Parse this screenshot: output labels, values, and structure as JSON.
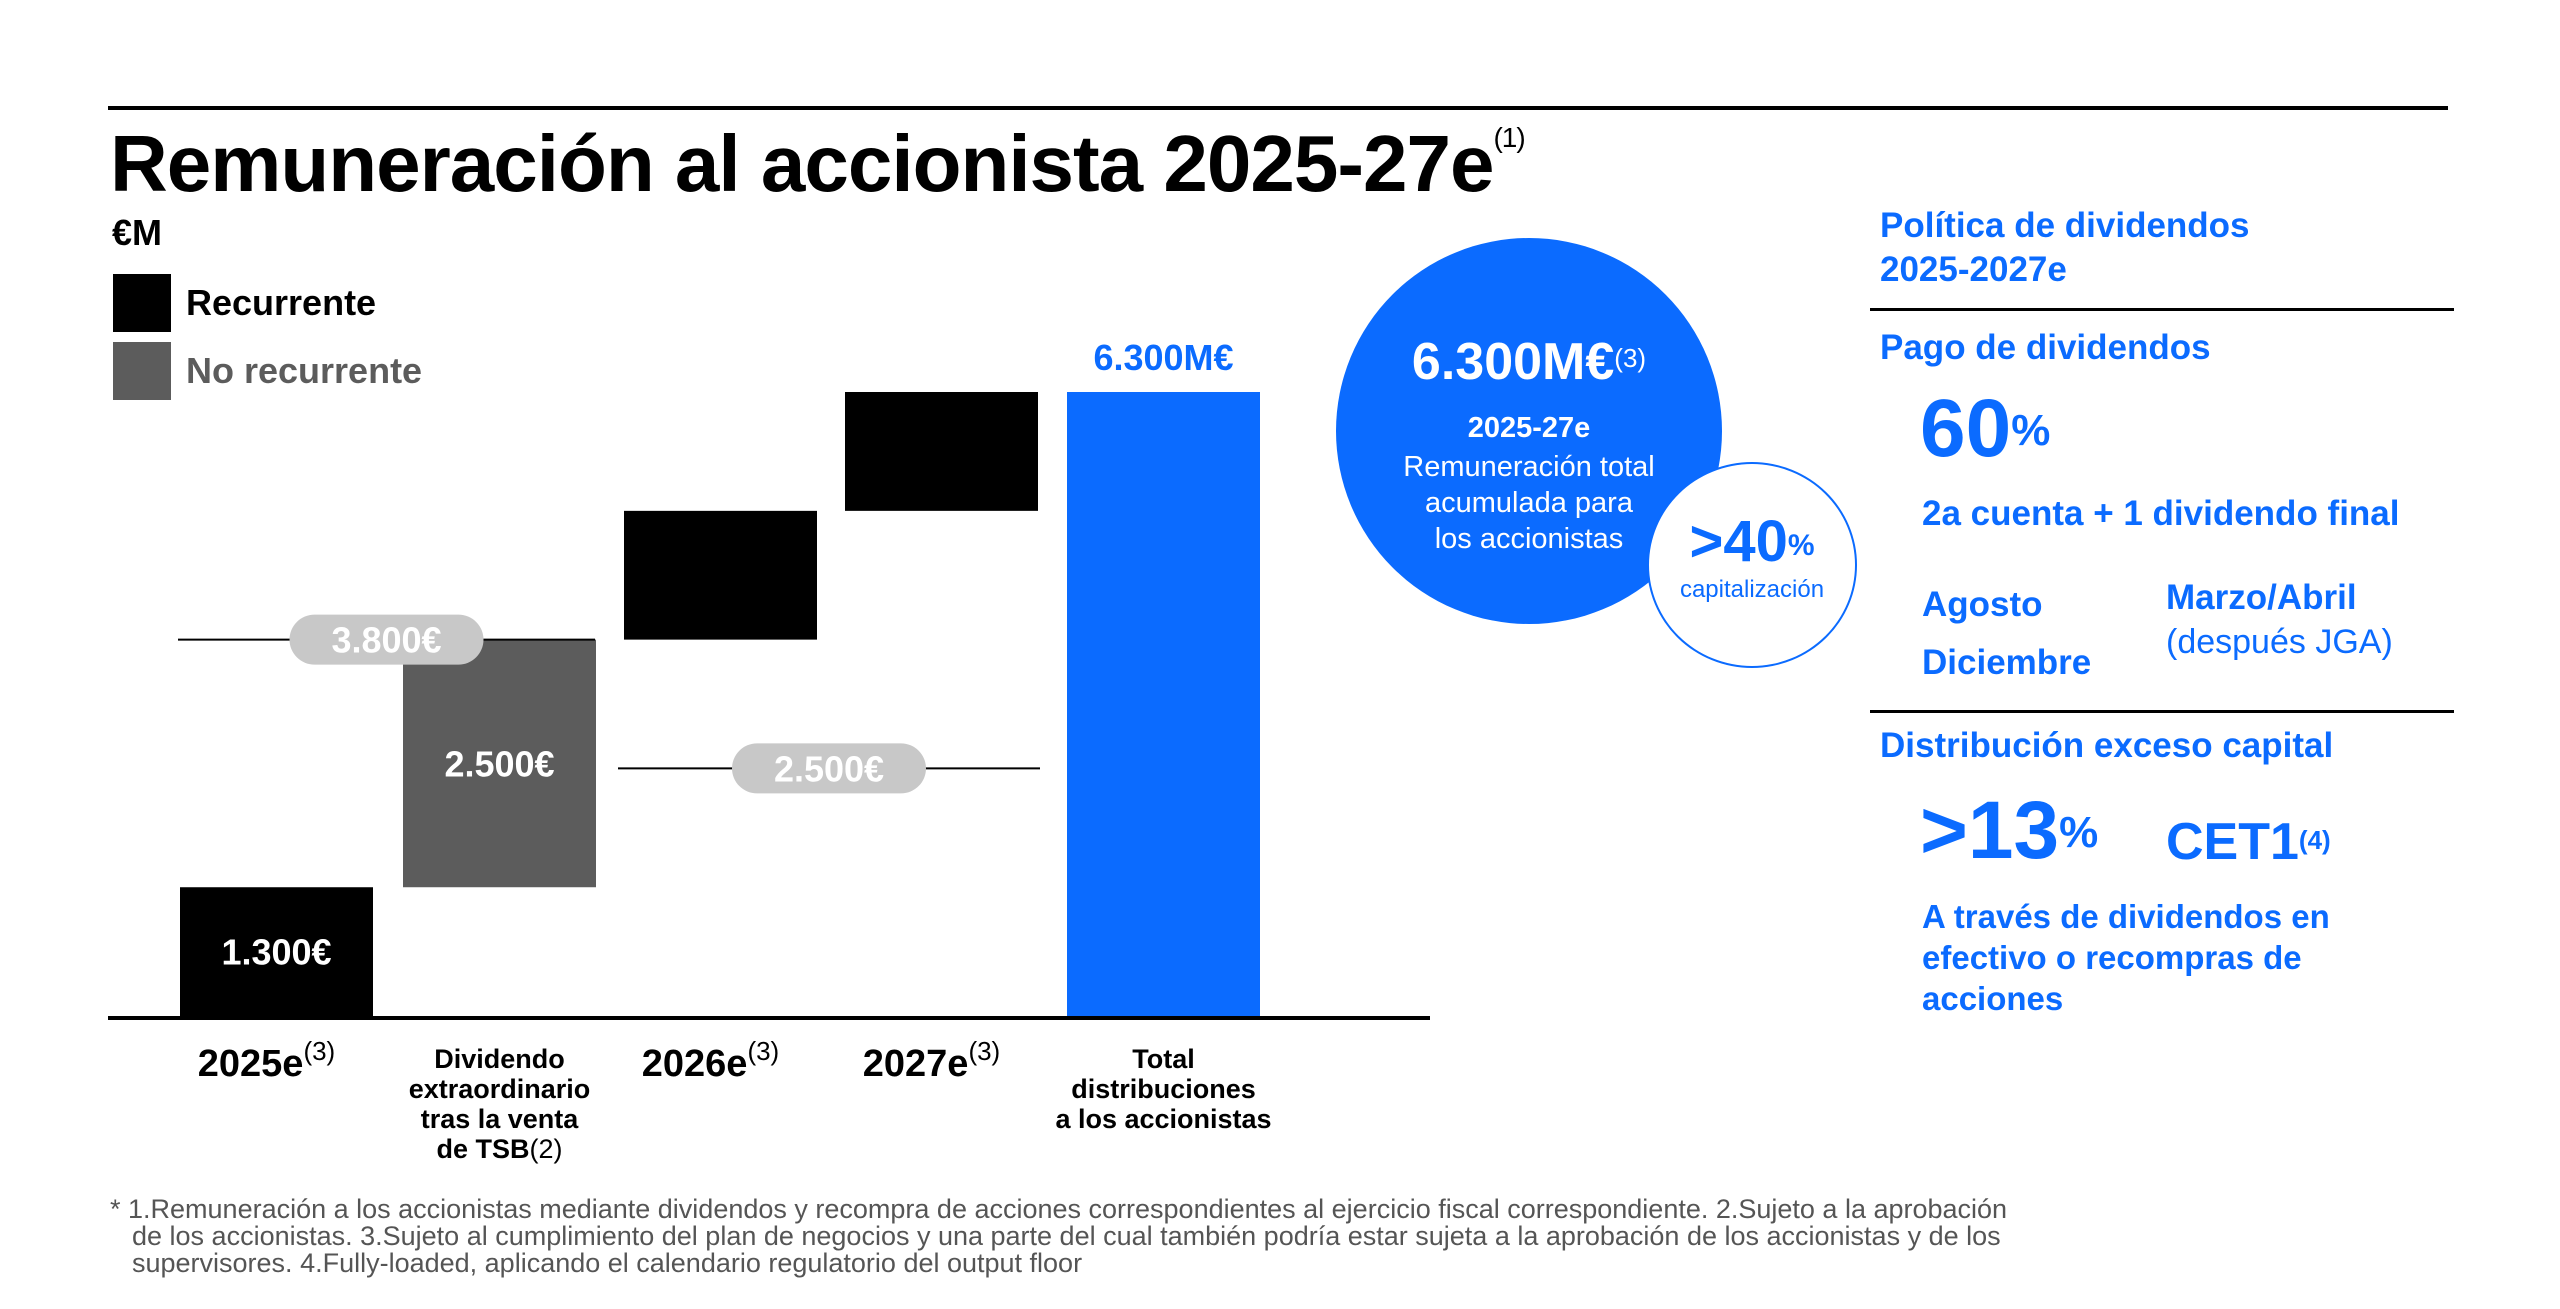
{
  "title": "Remuneración al accionista 2025-27e",
  "title_sup": "(1)",
  "unit": "€M",
  "legend": [
    {
      "label": "Recurrente",
      "color": "#000000"
    },
    {
      "label": "No recurrente",
      "color": "#5c5c5c"
    }
  ],
  "chart_data": {
    "type": "bar",
    "subtype": "waterfall",
    "categories": [
      "2025e(3)",
      "Dividendo extraordinario tras la venta de TSB(2)",
      "2026e(3)",
      "2027e(3)",
      "Total distribuciones a los accionistas"
    ],
    "values": [
      1300,
      2500,
      1300,
      1200,
      6300
    ],
    "bar_labels": [
      "1.300€",
      "2.500€",
      "",
      "",
      "6.300M€"
    ],
    "legend_for_bars": [
      "Recurrente",
      "No recurrente",
      "Recurrente",
      "Recurrente",
      null
    ],
    "colors": [
      "#000000",
      "#5c5c5c",
      "#000000",
      "#000000",
      "#0b6bff"
    ],
    "bracket_totals": [
      {
        "label": "3.800€",
        "value": 3800
      },
      {
        "label": "2.500€",
        "value": 2500
      }
    ],
    "ylim": [
      0,
      6300
    ]
  },
  "categories_display": {
    "c1": {
      "text": "2025e",
      "sup": "(3)"
    },
    "c2": {
      "lines": [
        "Dividendo",
        "extraordinario",
        "tras la venta",
        "de TSB"
      ],
      "sup": "(2)"
    },
    "c3": {
      "text": "2026e",
      "sup": "(3)"
    },
    "c4": {
      "text": "2027e",
      "sup": "(3)"
    },
    "c5": {
      "lines": [
        "Total",
        "distribuciones",
        "a los accionistas"
      ]
    }
  },
  "circle": {
    "value": "6.300M€",
    "value_sup": "(3)",
    "period": "2025-27e",
    "desc": [
      "Remuneración total",
      "acumulada para",
      "los accionistas"
    ]
  },
  "circle_small": {
    "value": ">40",
    "pct": "%",
    "label": "capitalización"
  },
  "right_panel": {
    "heading": [
      "Política de dividendos",
      "2025-2027e"
    ],
    "pago_title": "Pago de dividendos",
    "payout_value": "60",
    "payout_pct": "%",
    "payout_desc": "2a cuenta + 1 dividendo final",
    "schedule_left": [
      "Agosto",
      "Diciembre"
    ],
    "schedule_right_title": "Marzo/Abril",
    "schedule_right_note": "(después JGA)",
    "excess_title": "Distribución exceso capital",
    "excess_value": ">13",
    "excess_pct": "%",
    "cet1": "CET1",
    "cet1_sup": "(4)",
    "excess_desc": [
      "A través de dividendos en",
      "efectivo o recompras de",
      "acciones"
    ]
  },
  "footnote": [
    "* 1.Remuneración a los accionistas mediante dividendos y recompra de acciones correspondientes al ejercicio fiscal correspondiente. 2.Sujeto a la aprobación",
    "de los accionistas.  3.Sujeto al cumplimiento del plan de negocios y una parte del cual también podría estar sujeta a la aprobación de los accionistas y de los",
    "supervisores. 4.Fully-loaded, aplicando el calendario regulatorio del output floor"
  ],
  "colors": {
    "accent": "#0b6bff",
    "recurring": "#000000",
    "non_recurring": "#5c5c5c",
    "bracket_pill": "#c8c8c8"
  }
}
